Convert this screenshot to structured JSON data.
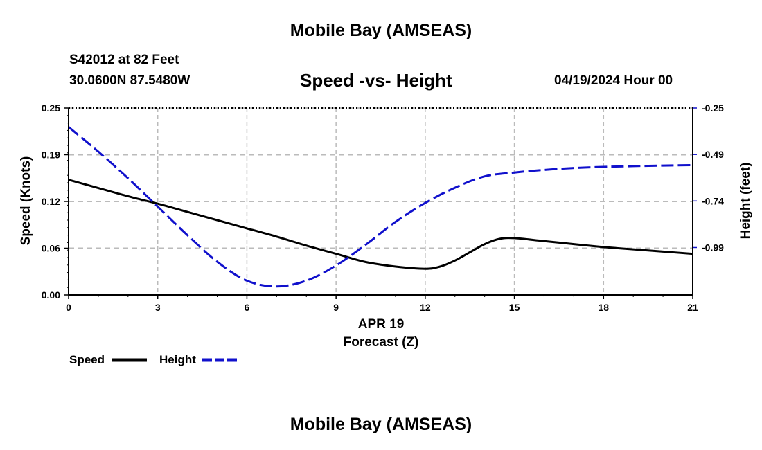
{
  "header": {
    "title": "Mobile Bay (AMSEAS)",
    "station": "S42012 at 82 Feet",
    "coords": "30.0600N  87.5480W",
    "subtitle": "Speed -vs- Height",
    "datetime": "04/19/2024 Hour 00"
  },
  "footer": {
    "title": "Mobile Bay (AMSEAS)"
  },
  "chart_data": {
    "type": "line",
    "title": "Speed -vs- Height",
    "xlabel": "Forecast (Z)",
    "xlabel_date": "APR 19",
    "ylabel": "Speed (Knots)",
    "y2label": "Height (feet)",
    "x_ticks": [
      0,
      3,
      6,
      9,
      12,
      15,
      18,
      21
    ],
    "xlim": [
      0,
      21
    ],
    "y_ticks": [
      "0.00",
      "0.06",
      "0.12",
      "0.19",
      "0.25"
    ],
    "y_tick_values": [
      0.0,
      0.0625,
      0.125,
      0.1875,
      0.25
    ],
    "ylim": [
      0,
      0.25
    ],
    "y2_ticks": [
      "-0.25",
      "-0.49",
      "-0.74",
      "-0.99"
    ],
    "y2_tick_values": [
      -0.25,
      -0.495,
      -0.74,
      -0.985
    ],
    "y2lim": [
      -1.235,
      -0.25
    ],
    "grid": true,
    "legend": "bottom-left",
    "colors": {
      "speed": "#000000",
      "height": "#1010cc",
      "grid": "#bbbbbb"
    },
    "series": [
      {
        "name": "Speed",
        "axis": "left",
        "style": "solid",
        "x": [
          0,
          1,
          2,
          3,
          4,
          5,
          6,
          7,
          8,
          9,
          10,
          11,
          12,
          12.5,
          13,
          13.5,
          14,
          14.5,
          15,
          16,
          17,
          18,
          19,
          20,
          21
        ],
        "values": [
          0.154,
          0.143,
          0.132,
          0.122,
          0.111,
          0.1,
          0.089,
          0.078,
          0.066,
          0.055,
          0.044,
          0.038,
          0.035,
          0.038,
          0.046,
          0.057,
          0.068,
          0.075,
          0.076,
          0.072,
          0.068,
          0.064,
          0.061,
          0.058,
          0.055
        ]
      },
      {
        "name": "Height",
        "axis": "right",
        "style": "dashed",
        "x": [
          0,
          1,
          2,
          3,
          4,
          5,
          6,
          7,
          8,
          9,
          10,
          11,
          12,
          13,
          14,
          15,
          16,
          17,
          18,
          19,
          20,
          21
        ],
        "values": [
          -0.35,
          -0.48,
          -0.62,
          -0.77,
          -0.92,
          -1.06,
          -1.16,
          -1.19,
          -1.16,
          -1.08,
          -0.97,
          -0.85,
          -0.75,
          -0.67,
          -0.61,
          -0.59,
          -0.576,
          -0.566,
          -0.56,
          -0.556,
          -0.553,
          -0.551
        ]
      }
    ]
  }
}
